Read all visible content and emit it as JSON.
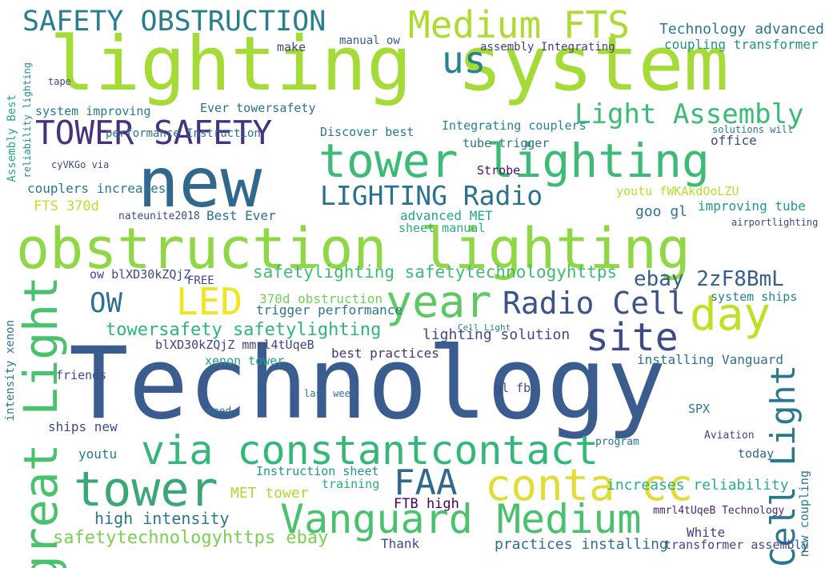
{
  "words": [
    {
      "text": "Technology",
      "color": "#3b5c8f"
    },
    {
      "text": "lighting system",
      "color": "#a5db36"
    },
    {
      "text": "obstruction lighting",
      "color": "#8fd744"
    },
    {
      "text": "new",
      "color": "#31688e"
    },
    {
      "text": "tower lighting",
      "color": "#3bbb75"
    },
    {
      "text": "tower",
      "color": "#3ba776"
    },
    {
      "text": "Vanguard Medium",
      "color": "#4ac16d"
    },
    {
      "text": "conta cc",
      "color": "#e1dd37"
    },
    {
      "text": "via constantcontact",
      "color": "#35b779"
    },
    {
      "text": "Medium FTS",
      "color": "#addc30"
    },
    {
      "text": "SAFETY OBSTRUCTION",
      "color": "#277f8e"
    },
    {
      "text": "TOWER SAFETY",
      "color": "#46327e"
    },
    {
      "text": "year",
      "color": "#5ec962"
    },
    {
      "text": "site",
      "color": "#3e4a89"
    },
    {
      "text": "great Light",
      "color": "#4ac16d"
    },
    {
      "text": "Cell Light",
      "color": "#2a788e"
    },
    {
      "text": "day",
      "color": "#c2df23"
    },
    {
      "text": "LED",
      "color": "#f1e51d"
    },
    {
      "text": "FAA",
      "color": "#31688e"
    },
    {
      "text": "Radio Cell",
      "color": "#3b528b"
    },
    {
      "text": "Light Assembly",
      "color": "#3bbb75"
    },
    {
      "text": "LIGHTING Radio",
      "color": "#2c728e"
    },
    {
      "text": "us",
      "color": "#26828e"
    },
    {
      "text": "OW",
      "color": "#2c728e"
    },
    {
      "text": "towersafety safetylighting",
      "color": "#2fb47c"
    },
    {
      "text": "safetylighting safetytechnologyhttps",
      "color": "#3fbc73"
    },
    {
      "text": "safetytechnologyhttps ebay",
      "color": "#7ad151"
    },
    {
      "text": "Technology advanced",
      "color": "#2a788e"
    },
    {
      "text": "coupling transformer",
      "color": "#20928c"
    },
    {
      "text": "ebay 2zF8BmL",
      "color": "#355f8d"
    },
    {
      "text": "youtu fWKAkdOoLZU",
      "color": "#b5de2b"
    },
    {
      "text": "FTS 370d",
      "color": "#bddf26"
    },
    {
      "text": "FTB high",
      "color": "#440154"
    },
    {
      "text": "increases reliability",
      "color": "#29af7f"
    },
    {
      "text": "practices installing",
      "color": "#2d708e"
    },
    {
      "text": "transformer assembly",
      "color": "#3e4989"
    },
    {
      "text": "high intensity",
      "color": "#2a788e"
    },
    {
      "text": "MET tower",
      "color": "#a8db34"
    },
    {
      "text": "Instruction sheet",
      "color": "#1f948c"
    },
    {
      "text": "370d obstruction",
      "color": "#73d056"
    },
    {
      "text": "trigger performance",
      "color": "#2a788e"
    },
    {
      "text": "lighting solution",
      "color": "#3e4989"
    },
    {
      "text": "best practices",
      "color": "#46337f"
    },
    {
      "text": "installing Vanguard",
      "color": "#2c728e"
    },
    {
      "text": "system ships",
      "color": "#25848e"
    },
    {
      "text": "Strobe",
      "color": "#471365"
    },
    {
      "text": "office",
      "color": "#3e4989"
    },
    {
      "text": "goo gl",
      "color": "#2a788e"
    },
    {
      "text": "improving tube",
      "color": "#1f9a8a"
    },
    {
      "text": "Best Ever",
      "color": "#2d708e"
    },
    {
      "text": "advanced MET",
      "color": "#22a884"
    },
    {
      "text": "sheet manual",
      "color": "#29af7f"
    },
    {
      "text": "xenon tower",
      "color": "#1fa187"
    },
    {
      "text": "blXD30kZQjZ mmrl4tUqeB",
      "color": "#414487"
    },
    {
      "text": "ow blXD30kZQjZ",
      "color": "#3e4989"
    },
    {
      "text": "Discover best",
      "color": "#2a788e"
    },
    {
      "text": "Integrating couplers",
      "color": "#25848e"
    },
    {
      "text": "tube trigger",
      "color": "#2c728e"
    },
    {
      "text": "system improving",
      "color": "#2a788e"
    },
    {
      "text": "Ever towersafety",
      "color": "#2c728e"
    },
    {
      "text": "performance Instruction",
      "color": "#2c728e"
    },
    {
      "text": "couplers increases",
      "color": "#2a788e"
    },
    {
      "text": "nateunite2018",
      "color": "#3e4989"
    },
    {
      "text": "make",
      "color": "#3e4989"
    },
    {
      "text": "manual ow",
      "color": "#355f8d"
    },
    {
      "text": "assembly Integrating",
      "color": "#433e85"
    },
    {
      "text": "mmrl4tUqeB Technology",
      "color": "#482878"
    },
    {
      "text": "new coupling",
      "color": "#2a788e"
    },
    {
      "text": "White",
      "color": "#433e85"
    },
    {
      "text": "Thank",
      "color": "#3e4989"
    },
    {
      "text": "training",
      "color": "#29af7f"
    },
    {
      "text": "today",
      "color": "#355f8d"
    },
    {
      "text": "SPX",
      "color": "#2a788e"
    },
    {
      "text": "youtu",
      "color": "#2a788e"
    },
    {
      "text": "ships new",
      "color": "#3e4989"
    },
    {
      "text": "friends",
      "color": "#3e4989"
    },
    {
      "text": "FREE",
      "color": "#3e4989"
    },
    {
      "text": "gl fb",
      "color": "#3e4989"
    },
    {
      "text": "Assembly Best",
      "color": "#22a884"
    },
    {
      "text": "reliability lighting",
      "color": "#20928c"
    },
    {
      "text": "intensity xenon",
      "color": "#2a788e"
    },
    {
      "text": "cyVKGo via",
      "color": "#3e4989"
    },
    {
      "text": "solutions will",
      "color": "#2a788e"
    },
    {
      "text": "last week",
      "color": "#2c728e"
    },
    {
      "text": "tape",
      "color": "#3e4989"
    },
    {
      "text": "Aviation",
      "color": "#414487"
    },
    {
      "text": "need",
      "color": "#2c728e"
    },
    {
      "text": "program",
      "color": "#2c728e"
    },
    {
      "text": "airportlighting",
      "color": "#3e4989"
    },
    {
      "text": "Cell Light",
      "color": "#25848e"
    }
  ]
}
